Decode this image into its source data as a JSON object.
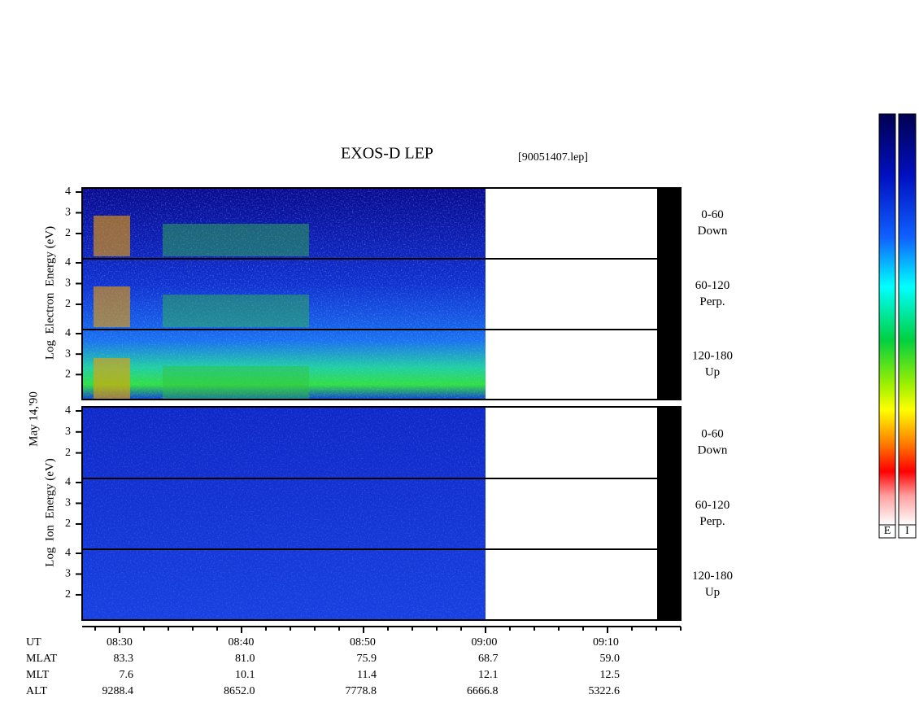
{
  "header": {
    "title": "EXOS-D LEP",
    "file": "[90051407.lep]"
  },
  "date": "May 14,'90",
  "electron_axis": {
    "label": "Log  Electron  Energy (eV)"
  },
  "ion_axis": {
    "label": "Log  Ion  Energy (eV)"
  },
  "yticks": [
    "4",
    "3",
    "2"
  ],
  "panels": [
    {
      "range": "0-60",
      "direction": "Down"
    },
    {
      "range": "60-120",
      "direction": "Perp."
    },
    {
      "range": "120-180",
      "direction": "Up"
    },
    {
      "range": "0-60",
      "direction": "Down"
    },
    {
      "range": "60-120",
      "direction": "Perp."
    },
    {
      "range": "120-180",
      "direction": "Up"
    }
  ],
  "ephemeris": [
    {
      "label": "UT",
      "values": [
        "08:30",
        "08:40",
        "08:50",
        "09:00",
        "09:10"
      ]
    },
    {
      "label": "MLAT",
      "values": [
        "83.3",
        "81.0",
        "75.9",
        "68.7",
        "59.0"
      ]
    },
    {
      "label": "MLT",
      "values": [
        "7.6",
        "10.1",
        "11.4",
        "12.1",
        "12.5"
      ]
    },
    {
      "label": "ALT",
      "values": [
        "9288.4",
        "8652.0",
        "7778.8",
        "6666.8",
        "5322.6"
      ]
    }
  ],
  "colorbars": [
    "E",
    "I"
  ]
}
